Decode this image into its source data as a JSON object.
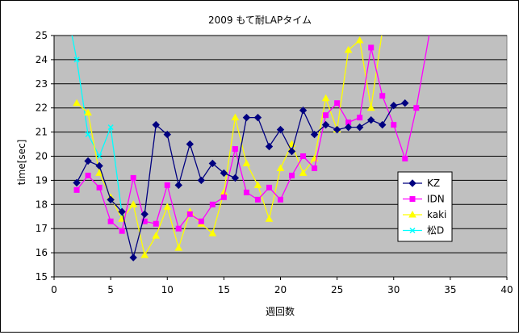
{
  "chart_data": {
    "type": "line",
    "title": "2009 もて耐LAPタイム",
    "xlabel": "週回数",
    "ylabel": "time[sec]",
    "xlim": [
      0,
      40
    ],
    "ylim": [
      15,
      25
    ],
    "xticks": [
      "0",
      "5",
      "10",
      "15",
      "20",
      "25",
      "30",
      "35",
      "40"
    ],
    "yticks": [
      "15",
      "16",
      "17",
      "18",
      "19",
      "20",
      "21",
      "22",
      "23",
      "24",
      "25"
    ],
    "grid": "horizontal",
    "plot_background": "#C0C0C0",
    "legend_position": "right",
    "series": [
      {
        "name": "KZ",
        "color": "#000080",
        "marker": "diamond",
        "x": [
          2,
          3,
          4,
          5,
          6,
          7,
          8,
          9,
          10,
          11,
          12,
          13,
          14,
          15,
          16,
          17,
          18,
          19,
          20,
          21,
          22,
          23,
          24,
          25,
          26,
          27,
          28,
          29,
          30,
          31
        ],
        "y": [
          18.9,
          19.8,
          19.6,
          18.2,
          17.7,
          15.8,
          17.6,
          21.3,
          20.9,
          18.8,
          20.5,
          19.0,
          19.7,
          19.3,
          19.1,
          21.6,
          21.6,
          20.4,
          21.1,
          20.2,
          21.9,
          20.9,
          21.3,
          21.1,
          21.2,
          21.2,
          21.5,
          21.3,
          22.1,
          22.2
        ]
      },
      {
        "name": "IDN",
        "color": "#FF00FF",
        "marker": "square",
        "x": [
          2,
          3,
          4,
          5,
          6,
          7,
          8,
          9,
          10,
          11,
          12,
          13,
          14,
          15,
          16,
          17,
          18,
          19,
          20,
          21,
          22,
          23,
          24,
          25,
          26,
          27,
          28,
          29,
          30,
          31,
          32,
          33.2
        ],
        "y": [
          18.6,
          19.2,
          18.7,
          17.3,
          16.9,
          19.1,
          17.3,
          17.2,
          18.8,
          17.0,
          17.6,
          17.3,
          18.0,
          18.3,
          20.3,
          18.5,
          18.2,
          18.7,
          18.2,
          19.2,
          20.0,
          19.5,
          21.7,
          22.2,
          21.4,
          21.6,
          24.5,
          22.5,
          21.3,
          19.9,
          22.0,
          25.2
        ]
      },
      {
        "name": "kaki",
        "color": "#FFFF00",
        "marker": "triangle",
        "x": [
          2,
          3,
          4,
          5,
          6,
          7,
          8,
          9,
          10,
          11,
          12,
          13,
          14,
          15,
          16,
          17,
          18,
          19,
          20,
          21,
          22,
          23,
          24,
          25,
          26,
          27,
          28,
          29
        ],
        "y": [
          22.2,
          21.8,
          19.3,
          18.3,
          17.4,
          18.0,
          15.9,
          16.7,
          17.9,
          16.2,
          17.7,
          17.2,
          16.8,
          18.5,
          21.6,
          19.7,
          18.8,
          17.4,
          19.5,
          20.5,
          19.3,
          19.9,
          22.4,
          21.1,
          24.4,
          24.8,
          22.0,
          25.2
        ]
      },
      {
        "name": "松D",
        "color": "#00FFFF",
        "marker": "x",
        "x": [
          1.5,
          2,
          3,
          4,
          5,
          6
        ],
        "y": [
          25.2,
          24.0,
          20.9,
          20.0,
          21.2,
          17.6
        ]
      }
    ]
  }
}
